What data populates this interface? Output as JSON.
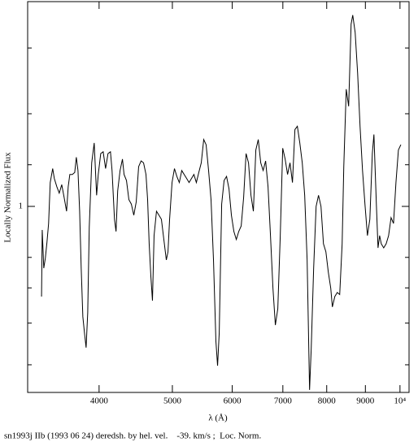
{
  "chart_data": {
    "type": "line",
    "y_label": "Locally Normalized Flux",
    "x_label": "λ (Å)",
    "caption": "sn1993j IIb (1993 06 24) deredsh. by hel. vel.    -39. km/s ;  Loc. Norm.",
    "x_log": true,
    "y_log": true,
    "color": "#000000",
    "xlim": [
      3218,
      10280
    ],
    "ylim": [
      0.443,
      2.45
    ],
    "xticks": [
      4000,
      5000,
      6000,
      7000,
      8000,
      9000,
      {
        "value": 10000,
        "label": "10⁴"
      }
    ],
    "yticks": [
      1
    ],
    "y_minor_ticks": [
      0.5,
      0.6,
      0.7,
      0.8,
      1.2,
      1.5,
      2
    ],
    "x": [
      3357,
      3364,
      3380,
      3396,
      3413,
      3430,
      3447,
      3473,
      3490,
      3517,
      3543,
      3570,
      3596,
      3623,
      3641,
      3659,
      3687,
      3714,
      3732,
      3751,
      3770,
      3788,
      3807,
      3826,
      3845,
      3864,
      3882,
      3911,
      3941,
      3970,
      3990,
      4020,
      4050,
      4080,
      4110,
      4141,
      4161,
      4192,
      4212,
      4233,
      4264,
      4295,
      4316,
      4348,
      4380,
      4413,
      4446,
      4479,
      4512,
      4546,
      4580,
      4614,
      4637,
      4659,
      4683,
      4706,
      4729,
      4764,
      4800,
      4836,
      4872,
      4909,
      4934,
      4958,
      4995,
      5032,
      5069,
      5107,
      5145,
      5183,
      5222,
      5261,
      5300,
      5339,
      5379,
      5419,
      5460,
      5501,
      5541,
      5583,
      5625,
      5667,
      5709,
      5738,
      5767,
      5810,
      5853,
      5897,
      5941,
      5985,
      6030,
      6075,
      6120,
      6166,
      6212,
      6258,
      6305,
      6352,
      6399,
      6447,
      6495,
      6544,
      6592,
      6642,
      6691,
      6741,
      6792,
      6842,
      6893,
      6945,
      6997,
      7049,
      7101,
      7154,
      7208,
      7262,
      7316,
      7371,
      7426,
      7481,
      7537,
      7593,
      7631,
      7688,
      7746,
      7803,
      7862,
      7921,
      7980,
      8039,
      8099,
      8139,
      8200,
      8261,
      8323,
      8385,
      8427,
      8490,
      8553,
      8617,
      8660,
      8724,
      8790,
      8855,
      8922,
      8988,
      9056,
      9123,
      9192,
      9237,
      9306,
      9353,
      9399,
      9446,
      9516,
      9588,
      9659,
      9732,
      9805,
      9878,
      9952,
      10027
    ],
    "values": [
      0.674,
      0.902,
      0.763,
      0.797,
      0.855,
      0.928,
      1.11,
      1.18,
      1.13,
      1.09,
      1.06,
      1.1,
      1.04,
      0.979,
      1.09,
      1.15,
      1.15,
      1.16,
      1.24,
      1.17,
      0.979,
      0.763,
      0.617,
      0.575,
      0.539,
      0.628,
      0.912,
      1.21,
      1.32,
      1.05,
      1.15,
      1.26,
      1.27,
      1.18,
      1.26,
      1.27,
      1.17,
      0.945,
      0.896,
      1.07,
      1.17,
      1.23,
      1.15,
      1.12,
      1.03,
      1.01,
      0.962,
      1.02,
      1.19,
      1.22,
      1.21,
      1.15,
      1.03,
      0.849,
      0.737,
      0.662,
      0.88,
      0.979,
      0.962,
      0.945,
      0.865,
      0.791,
      0.82,
      0.945,
      1.11,
      1.18,
      1.14,
      1.11,
      1.17,
      1.15,
      1.13,
      1.11,
      1.13,
      1.15,
      1.11,
      1.16,
      1.21,
      1.34,
      1.31,
      1.17,
      1.03,
      0.791,
      0.554,
      0.498,
      0.575,
      1.01,
      1.12,
      1.14,
      1.08,
      0.962,
      0.896,
      0.865,
      0.896,
      0.918,
      1.04,
      1.26,
      1.21,
      1.05,
      0.979,
      1.28,
      1.34,
      1.21,
      1.17,
      1.22,
      1.09,
      0.88,
      0.699,
      0.595,
      0.639,
      0.88,
      1.29,
      1.23,
      1.15,
      1.21,
      1.11,
      1.4,
      1.42,
      1.32,
      1.21,
      1.05,
      0.791,
      0.448,
      0.535,
      0.763,
      1.0,
      1.05,
      1.0,
      0.849,
      0.82,
      0.75,
      0.699,
      0.644,
      0.674,
      0.686,
      0.68,
      0.849,
      1.19,
      1.67,
      1.55,
      2.22,
      2.31,
      2.14,
      1.79,
      1.42,
      1.17,
      1.01,
      0.88,
      0.945,
      1.26,
      1.37,
      1.01,
      0.834,
      0.88,
      0.849,
      0.834,
      0.849,
      0.88,
      0.952,
      0.928,
      1.11,
      1.28,
      1.31
    ]
  }
}
